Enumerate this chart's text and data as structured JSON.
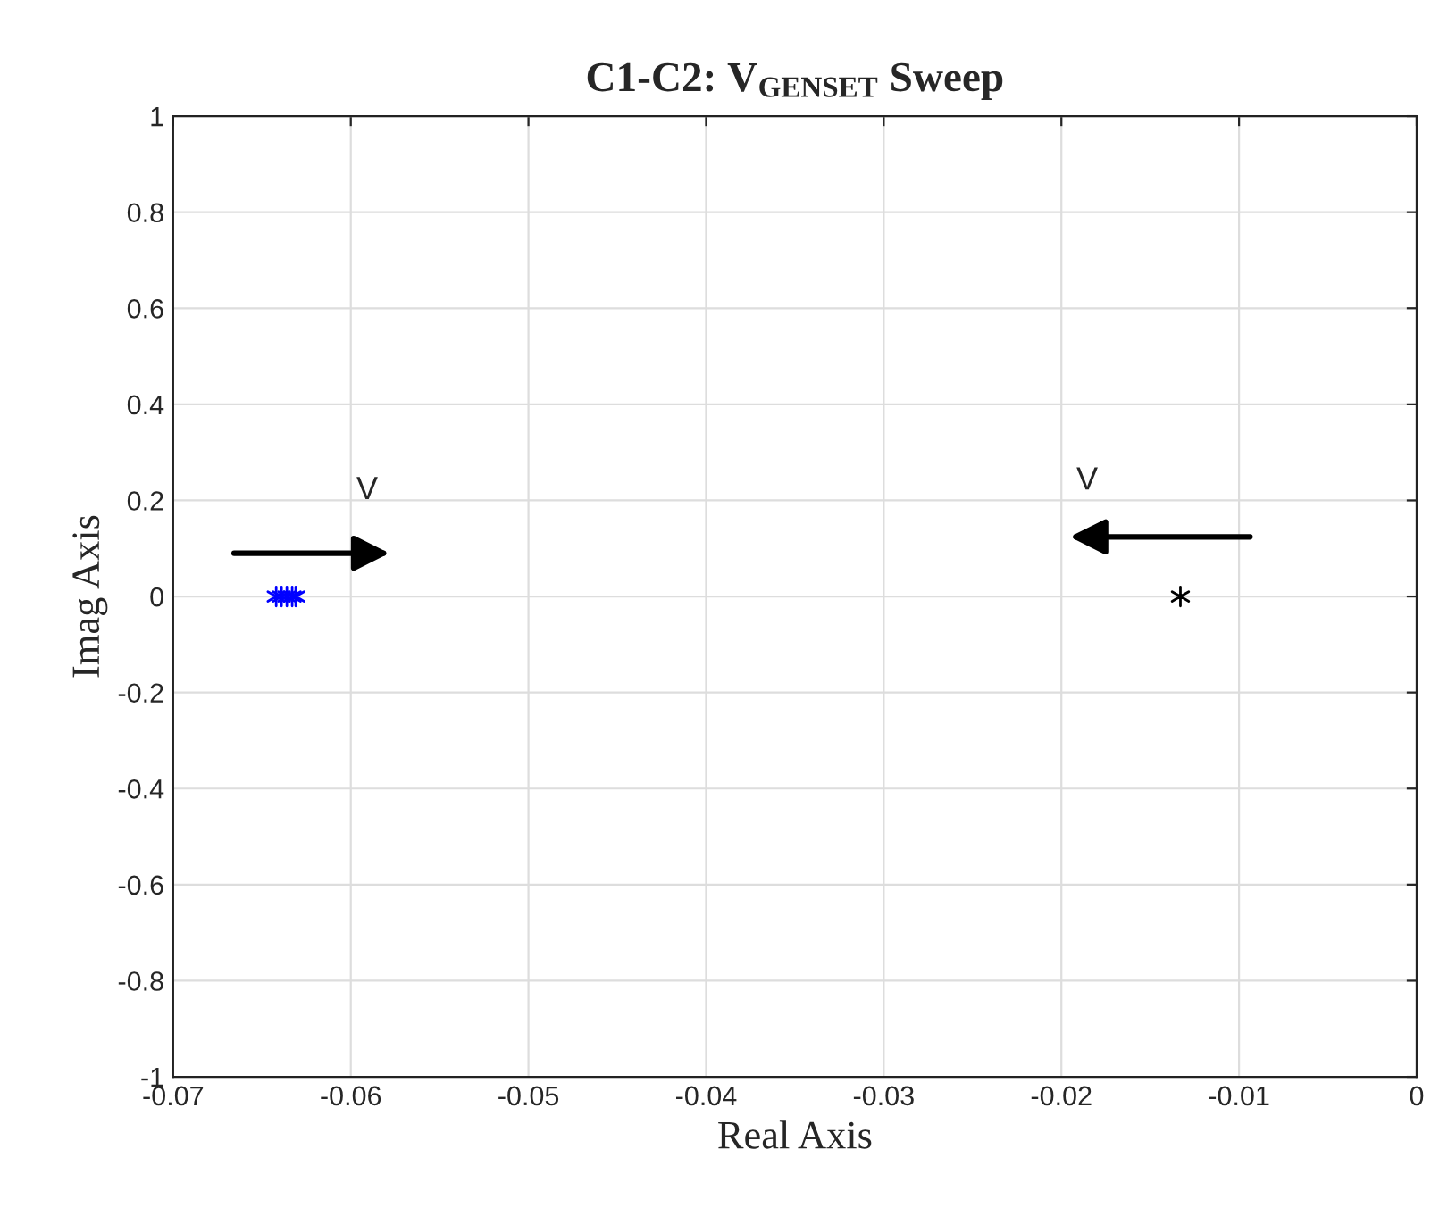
{
  "chart_data": {
    "type": "scatter",
    "title": "C1-C2: V$_{GENSET}$ Sweep",
    "xlabel": "Real Axis",
    "ylabel": "Imag Axis",
    "series": [
      {
        "color": "#0000ff",
        "x": [
          -0.0642,
          -0.0639,
          -0.0636,
          -0.0633,
          -0.0631
        ],
        "values": [
          0,
          0,
          0,
          0,
          0
        ]
      },
      {
        "color": "#000000",
        "x": [
          -0.0133
        ],
        "values": [
          0
        ]
      }
    ],
    "marker": "cross",
    "grid": true,
    "legend": false,
    "xlim": [
      -0.07,
      0
    ],
    "xticks": [
      -0.07,
      -0.06,
      -0.05,
      -0.04,
      -0.03,
      -0.02,
      -0.01,
      0
    ],
    "ylim": [
      -1,
      1
    ],
    "yticks": [
      -1,
      -0.8,
      -0.6,
      -0.4,
      -0.2,
      0,
      0.2,
      0.4,
      0.6,
      0.8,
      1
    ],
    "annotations": [
      "V",
      "V"
    ]
  }
}
